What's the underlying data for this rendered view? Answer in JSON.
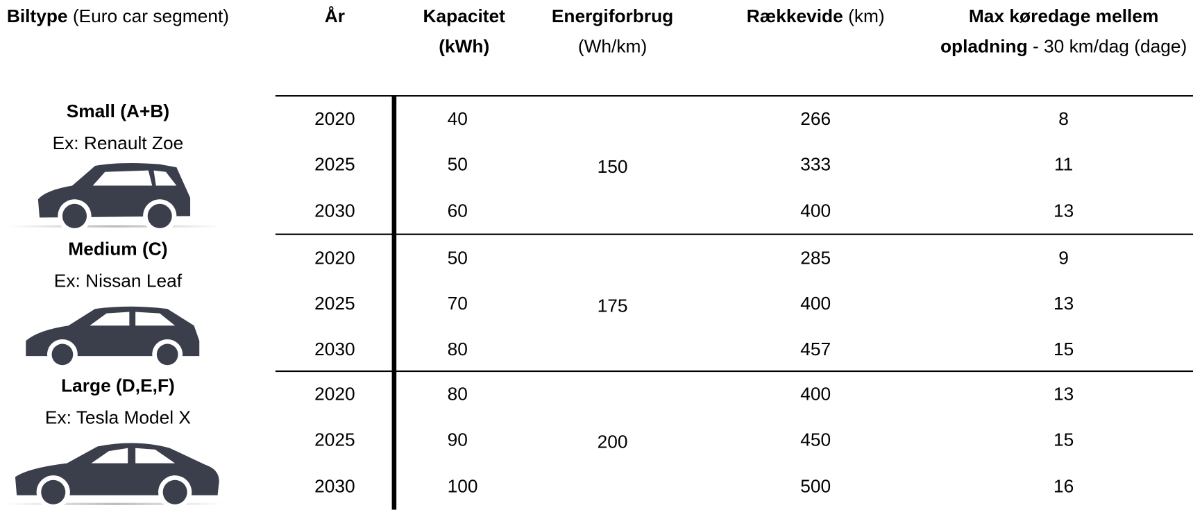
{
  "header": {
    "columns": [
      {
        "bold": "Biltype",
        "normal": "(Euro car segment)"
      },
      {
        "bold": "År"
      },
      {
        "bold": "Kapacitet (kWh)"
      },
      {
        "bold": "Energiforbrug",
        "normal": "(Wh/km)"
      },
      {
        "bold": "Rækkevide",
        "normal": "(km)"
      },
      {
        "bold": "Max køredage mellem opladning",
        "normal": "- 30 km/dag (dage)"
      }
    ]
  },
  "groups": [
    {
      "name": "Small (A+B)",
      "example": "Ex: Renault Zoe",
      "energy": 150,
      "rows": [
        {
          "year": 2020,
          "capacity": 40,
          "range": 266,
          "days": 8
        },
        {
          "year": 2025,
          "capacity": 50,
          "range": 333,
          "days": 11
        },
        {
          "year": 2030,
          "capacity": 60,
          "range": 400,
          "days": 13
        }
      ]
    },
    {
      "name": "Medium (C)",
      "example": "Ex: Nissan Leaf",
      "energy": 175,
      "rows": [
        {
          "year": 2020,
          "capacity": 50,
          "range": 285,
          "days": 9
        },
        {
          "year": 2025,
          "capacity": 70,
          "range": 400,
          "days": 13
        },
        {
          "year": 2030,
          "capacity": 80,
          "range": 457,
          "days": 15
        }
      ]
    },
    {
      "name": "Large (D,E,F)",
      "example": "Ex: Tesla Model X",
      "energy": 200,
      "rows": [
        {
          "year": 2020,
          "capacity": 80,
          "range": 400,
          "days": 13
        },
        {
          "year": 2025,
          "capacity": 90,
          "range": 450,
          "days": 15
        },
        {
          "year": 2030,
          "capacity": 100,
          "range": 500,
          "days": 16
        }
      ]
    }
  ]
}
